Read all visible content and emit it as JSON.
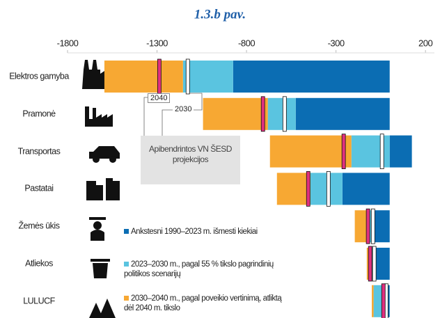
{
  "chart_data": {
    "type": "bar",
    "orientation": "horizontal",
    "stacked": true,
    "title": "1.3.b pav.",
    "categories": [
      "Elektros gamyba",
      "Pramonė",
      "Transportas",
      "Pastatai",
      "Žemės ūkis",
      "Atliekos",
      "LULUCF"
    ],
    "series": [
      {
        "name": "Ankstesni 1990–2023 m. išmesti kiekiai",
        "color": "#0b6db3",
        "values": [
          -875,
          -525,
          124,
          -264,
          -86,
          -78,
          -39
        ]
      },
      {
        "name": "2023–2030 m., pagal 55 % tikslo pagrindinių politikos scenarijų",
        "color": "#5ac4e0",
        "values": [
          -280,
          -156,
          -214,
          -179,
          -31,
          -27,
          -51
        ]
      },
      {
        "name": "2030–2040 m., pagal poveikio vertinimą, atliktą dėl 2040 m. tikslo",
        "color": "#f7a833",
        "values": [
          -439,
          -362,
          -455,
          -187,
          -78,
          -23,
          -10
        ]
      }
    ],
    "markers": [
      {
        "name": "2030",
        "color": "#ffffff",
        "values": [
          -1128,
          -587,
          -43,
          -342,
          -93,
          -86,
          -19
        ]
      },
      {
        "name": "2040",
        "color": "#e0307f",
        "values": [
          -1287,
          -708,
          -257,
          -455,
          -121,
          -109,
          -35
        ]
      }
    ],
    "annotation": "Apibendrintos VN ŠESD projekcijos",
    "xlim": [
      -1800,
      250
    ],
    "xticks": [
      -1800,
      -1300,
      -800,
      -300,
      200
    ]
  }
}
